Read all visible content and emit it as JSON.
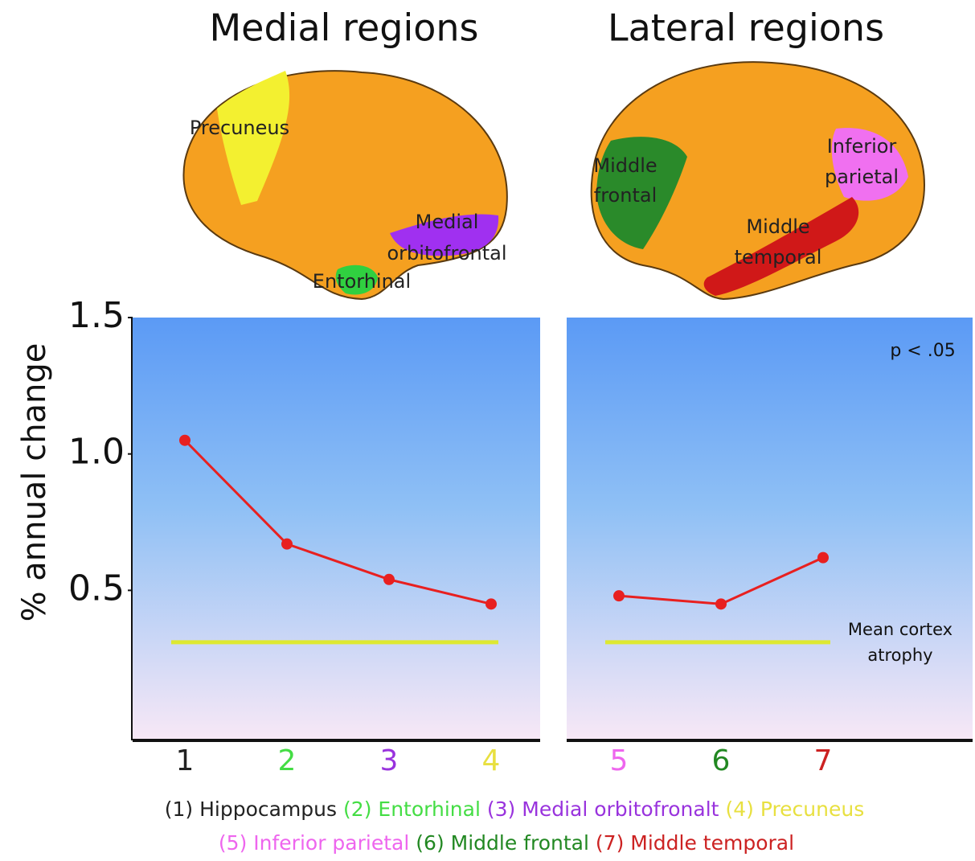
{
  "brains": [
    {
      "title": "Medial regions",
      "labels": [
        "Precuneus",
        "Medial",
        "orbitofrontal",
        "Entorhinal"
      ]
    },
    {
      "title": "Lateral regions",
      "labels": [
        "Middle",
        "frontal",
        "Inferior",
        "parietal",
        "Middle",
        "temporal"
      ]
    }
  ],
  "chart_data": [
    {
      "type": "line",
      "y_label": "% annual change",
      "categories": [
        "1",
        "2",
        "3",
        "4"
      ],
      "category_colors": [
        "#222222",
        "#44dd44",
        "#9933dd",
        "#e8e040"
      ],
      "series": [
        {
          "color": "#e82020",
          "values": [
            1.05,
            0.67,
            0.54,
            0.45
          ]
        }
      ],
      "reference_line": {
        "value": 0.31,
        "color": "#dde832"
      },
      "ylim": [
        -0.05,
        1.5
      ],
      "yticks": [
        0.5,
        {
          "value": 1,
          "label": "1.0"
        },
        1.5
      ]
    },
    {
      "type": "line",
      "annotations": [
        "p < .05",
        "Mean cortex",
        "atrophy"
      ],
      "categories": [
        "5",
        "6",
        "7"
      ],
      "category_colors": [
        "#ee66ee",
        "#228822",
        "#cc2222"
      ],
      "series": [
        {
          "color": "#e82020",
          "values": [
            0.48,
            0.45,
            0.62
          ]
        }
      ],
      "reference_line": {
        "value": 0.31,
        "color": "#dde832"
      },
      "ylim": [
        -0.05,
        1.5
      ]
    }
  ],
  "legend_rows": [
    [
      {
        "text": "(1) Hippocampus",
        "color": "#222222"
      },
      {
        "text": "(2) Entorhinal",
        "color": "#44dd44"
      },
      {
        "text": "(3) Medial orbitofronalt",
        "color": "#9933dd"
      },
      {
        "text": "(4) Precuneus",
        "color": "#e8e040"
      }
    ],
    [
      {
        "text": "(5) Inferior parietal",
        "color": "#ee66ee"
      },
      {
        "text": "(6) Middle frontal",
        "color": "#228822"
      },
      {
        "text": "(7) Middle temporal",
        "color": "#cc2222"
      }
    ]
  ]
}
